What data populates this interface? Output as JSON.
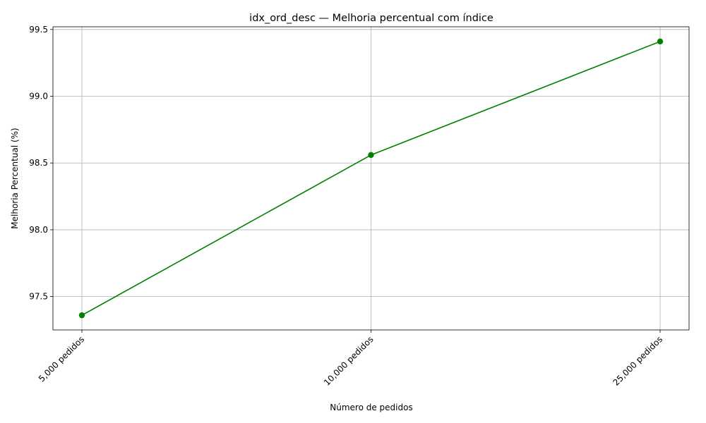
{
  "chart_data": {
    "type": "line",
    "title": "idx_ord_desc — Melhoria percentual com índice",
    "xlabel": "Número de pedidos",
    "ylabel": "Melhoria Percentual (%)",
    "categories": [
      "5,000 pedidos",
      "10,000 pedidos",
      "25,000 pedidos"
    ],
    "series": [
      {
        "values": [
          97.36,
          98.56,
          99.41
        ]
      }
    ],
    "ylim": [
      97.25,
      99.52
    ],
    "yticks": [
      97.5,
      98.0,
      98.5,
      99.0,
      99.5
    ],
    "ytick_labels": [
      "97.5",
      "98.0",
      "98.5",
      "99.0",
      "99.5"
    ],
    "grid": true,
    "marker": "circle",
    "colors": {
      "line": "#008000",
      "grid": "#b0b0b0"
    }
  }
}
